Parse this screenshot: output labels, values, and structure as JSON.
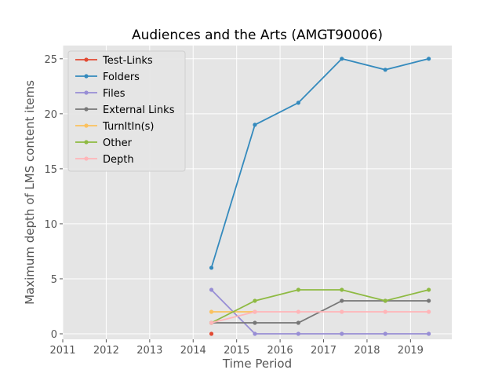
{
  "chart_data": {
    "type": "line",
    "title": "Audiences and the Arts (AMGT90006)",
    "xlabel": "Time Period",
    "ylabel": "Maximum depth of LMS content items",
    "xlim": [
      2011.0,
      2019.95
    ],
    "ylim": [
      -0.5,
      26.2
    ],
    "xticks": [
      2011,
      2012,
      2013,
      2014,
      2015,
      2016,
      2017,
      2018,
      2019
    ],
    "yticks": [
      0,
      5,
      10,
      15,
      20,
      25
    ],
    "grid": true,
    "legend_position": "upper-left",
    "x": [
      2014.42,
      2015.42,
      2016.42,
      2017.42,
      2018.42,
      2019.42
    ],
    "series": [
      {
        "name": "Test-Links",
        "color": "#E24A33",
        "x": [
          2014.42
        ],
        "values": [
          0
        ]
      },
      {
        "name": "Folders",
        "color": "#348ABD",
        "x": [
          2014.42,
          2015.42,
          2016.42,
          2017.42,
          2018.42,
          2019.42
        ],
        "values": [
          6,
          19,
          21,
          25,
          24,
          25
        ]
      },
      {
        "name": "Files",
        "color": "#988ED5",
        "x": [
          2014.42,
          2015.42,
          2016.42,
          2017.42,
          2018.42,
          2019.42
        ],
        "values": [
          4,
          0,
          0,
          0,
          0,
          0
        ]
      },
      {
        "name": "External Links",
        "color": "#777777",
        "x": [
          2014.42,
          2015.42,
          2016.42,
          2017.42,
          2018.42,
          2019.42
        ],
        "values": [
          1,
          1,
          1,
          3,
          3,
          3
        ]
      },
      {
        "name": "TurnItIn(s)",
        "color": "#FBC15E",
        "x": [
          2014.42,
          2015.42
        ],
        "values": [
          2,
          2
        ]
      },
      {
        "name": "Other",
        "color": "#8EBA42",
        "x": [
          2014.42,
          2015.42,
          2016.42,
          2017.42,
          2018.42,
          2019.42
        ],
        "values": [
          1,
          3,
          4,
          4,
          3,
          4
        ]
      },
      {
        "name": "Depth",
        "color": "#FFB5B8",
        "x": [
          2014.42,
          2015.42,
          2016.42,
          2017.42,
          2018.42,
          2019.42
        ],
        "values": [
          1,
          2,
          2,
          2,
          2,
          2
        ]
      }
    ]
  }
}
